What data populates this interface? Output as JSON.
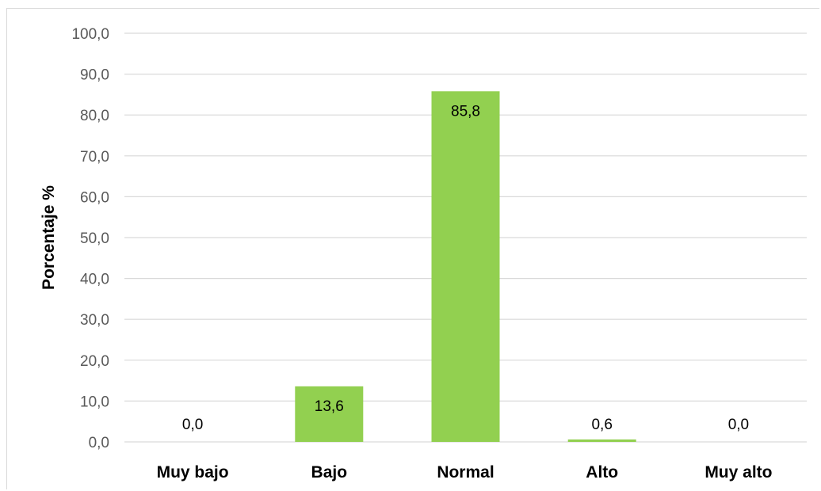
{
  "chart_data": {
    "type": "bar",
    "title": "",
    "xlabel": "",
    "ylabel": "Porcentaje %",
    "categories": [
      "Muy bajo",
      "Bajo",
      "Normal",
      "Alto",
      "Muy alto"
    ],
    "values": [
      0.0,
      13.6,
      85.8,
      0.6,
      0.0
    ],
    "data_labels": [
      "0,0",
      "13,6",
      "85,8",
      "0,6",
      "0,0"
    ],
    "ylim": [
      0,
      100
    ],
    "yticks": [
      0,
      10,
      20,
      30,
      40,
      50,
      60,
      70,
      80,
      90,
      100
    ],
    "ytick_labels": [
      "0,0",
      "10,0",
      "20,0",
      "30,0",
      "40,0",
      "50,0",
      "60,0",
      "70,0",
      "80,0",
      "90,0",
      "100,0"
    ],
    "grid": true,
    "legend": "none",
    "bar_color": "#92D050"
  }
}
